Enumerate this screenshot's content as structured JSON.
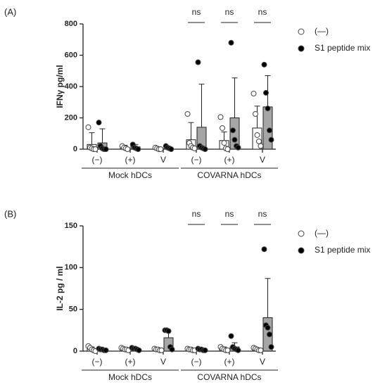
{
  "chart_data": [
    {
      "type": "bar",
      "panel_label": "(A)",
      "ylabel": "IFNγ pg/ml",
      "categories": [
        "(−)",
        "(+)",
        "V",
        "(−)",
        "(+)",
        "V"
      ],
      "group_labels": [
        "Mock hDCs",
        "COVARNA hDCs"
      ],
      "annotations": [
        null,
        null,
        null,
        "ns",
        "ns",
        "ns"
      ],
      "ylim": [
        0,
        800
      ],
      "yticks": [
        0,
        200,
        400,
        600,
        800
      ],
      "series": [
        {
          "name": "(—)",
          "color": "#ffffff",
          "point_color": "#ffffff",
          "values": [
            30,
            10,
            5,
            60,
            55,
            135
          ],
          "errors": [
            75,
            15,
            5,
            110,
            55,
            140
          ],
          "points": [
            [
              140,
              10,
              5,
              0,
              0
            ],
            [
              20,
              10,
              5,
              0
            ],
            [
              10,
              5,
              0,
              0
            ],
            [
              225,
              40,
              20,
              10,
              5
            ],
            [
              205,
              135,
              40,
              5,
              0
            ],
            [
              355,
              225,
              90,
              50,
              20
            ]
          ]
        },
        {
          "name": "S1 peptide mix",
          "color": "#a6a6a6",
          "point_color": "#000000",
          "values": [
            40,
            15,
            10,
            140,
            200,
            270
          ],
          "errors": [
            90,
            15,
            5,
            275,
            255,
            200
          ],
          "points": [
            [
              170,
              20,
              5,
              0,
              0
            ],
            [
              30,
              10,
              5,
              0
            ],
            [
              20,
              10,
              5,
              0
            ],
            [
              555,
              20,
              10,
              5,
              0
            ],
            [
              680,
              120,
              60,
              20,
              10
            ],
            [
              540,
              360,
              260,
              120,
              60
            ]
          ]
        }
      ]
    },
    {
      "type": "bar",
      "panel_label": "(B)",
      "ylabel": "IL-2 pg / ml",
      "categories": [
        "(−)",
        "(+)",
        "V",
        "(−)",
        "(+)",
        "V"
      ],
      "group_labels": [
        "Mock hDCs",
        "COVARNA hDCs"
      ],
      "annotations": [
        null,
        null,
        null,
        "ns",
        "ns",
        "ns"
      ],
      "ylim": [
        0,
        150
      ],
      "yticks": [
        0,
        50,
        100,
        150
      ],
      "series": [
        {
          "name": "(—)",
          "color": "#ffffff",
          "point_color": "#ffffff",
          "values": [
            3,
            3,
            2,
            2,
            3,
            3
          ],
          "errors": [
            2,
            1,
            1,
            1,
            2,
            1
          ],
          "points": [
            [
              6,
              4,
              2,
              1,
              0
            ],
            [
              4,
              3,
              2,
              2,
              1
            ],
            [
              3,
              2,
              2,
              1,
              1
            ],
            [
              3,
              2,
              2,
              1,
              1
            ],
            [
              5,
              3,
              2,
              1,
              1
            ],
            [
              4,
              3,
              2,
              1,
              1
            ]
          ]
        },
        {
          "name": "S1 peptide mix",
          "color": "#a6a6a6",
          "point_color": "#000000",
          "values": [
            2,
            3,
            16,
            2,
            5,
            40
          ],
          "errors": [
            1,
            1,
            8,
            1,
            5,
            47
          ],
          "points": [
            [
              3,
              2,
              2,
              1,
              1
            ],
            [
              4,
              3,
              3,
              2,
              1
            ],
            [
              25,
              25,
              24,
              5,
              2
            ],
            [
              3,
              2,
              2,
              1,
              1
            ],
            [
              18,
              5,
              3,
              2,
              1
            ],
            [
              122,
              31,
              28,
              20,
              5
            ]
          ]
        }
      ]
    }
  ]
}
